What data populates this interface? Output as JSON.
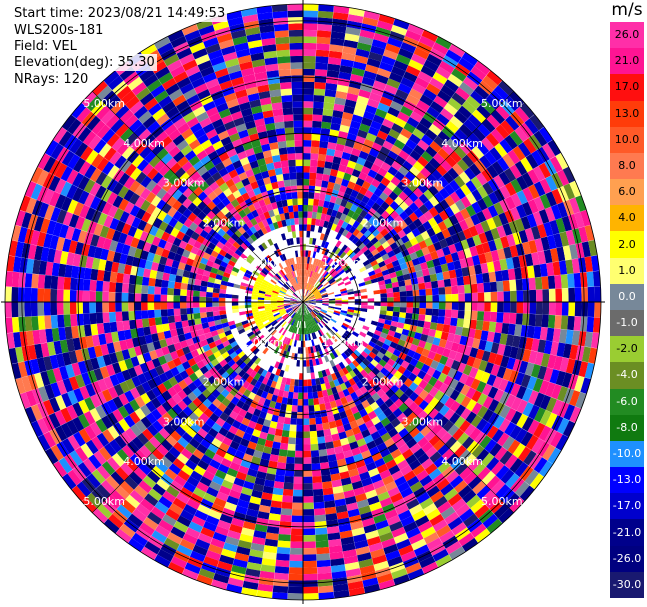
{
  "header": {
    "start_time": "Start time: 2023/08/21 14:49:53",
    "instrument": "WLS200s-181",
    "field": "Field: VEL",
    "elevation": "Elevation(deg): 35.30",
    "nrays": "NRays: 120"
  },
  "colorbar": {
    "unit": "m/s",
    "bins": [
      {
        "label": "26.0",
        "color": "#ff2fa8"
      },
      {
        "label": "21.0",
        "color": "#ff1493"
      },
      {
        "label": "17.0",
        "color": "#ff0f0f"
      },
      {
        "label": "13.0",
        "color": "#ff3c0a"
      },
      {
        "label": "10.0",
        "color": "#ff5a28"
      },
      {
        "label": "8.0",
        "color": "#ff7a50"
      },
      {
        "label": "6.0",
        "color": "#ffa050"
      },
      {
        "label": "4.0",
        "color": "#ffb400"
      },
      {
        "label": "2.0",
        "color": "#ffff00"
      },
      {
        "label": "1.0",
        "color": "#ffff70"
      },
      {
        "label": "0.0",
        "color": "#778899"
      },
      {
        "label": "-1.0",
        "color": "#6b6b6b"
      },
      {
        "label": "-2.0",
        "color": "#9acd32"
      },
      {
        "label": "-4.0",
        "color": "#6b8e23"
      },
      {
        "label": "-6.0",
        "color": "#228b22"
      },
      {
        "label": "-8.0",
        "color": "#107a10"
      },
      {
        "label": "-10.0",
        "color": "#1e90ff"
      },
      {
        "label": "-13.0",
        "color": "#0000ff"
      },
      {
        "label": "-17.0",
        "color": "#0000cd"
      },
      {
        "label": "-21.0",
        "color": "#00008b"
      },
      {
        "label": "-26.0",
        "color": "#000080"
      },
      {
        "label": "-30.0",
        "color": "#191970"
      }
    ]
  },
  "chart_data": {
    "type": "heatmap",
    "projection": "polar-ppi",
    "field": "VEL",
    "units": "m/s",
    "elevation_deg": 35.3,
    "n_rays": 120,
    "range_rings_km": [
      {
        "label": "1.00km",
        "value": 1.0
      },
      {
        "label": "2.00km",
        "value": 2.0
      },
      {
        "label": "3.00km",
        "value": 3.0
      },
      {
        "label": "4.00km",
        "value": 4.0
      },
      {
        "label": "5.00km",
        "value": 5.0
      }
    ],
    "max_range_km": 5.3,
    "range_gates": 46,
    "color_scale_min": -30.0,
    "color_scale_max": 26.0,
    "near_field_features": [
      {
        "sector": "west",
        "range_km": [
          0.3,
          0.9
        ],
        "value": 2.0
      },
      {
        "sector": "south",
        "range_km": [
          0.0,
          0.6
        ],
        "value": -6.0
      },
      {
        "sector": "north",
        "range_km": [
          0.2,
          0.8
        ],
        "value": 8.0
      },
      {
        "sector": "northeast",
        "range_km": [
          0.0,
          0.4
        ],
        "value": 4.0
      }
    ]
  }
}
